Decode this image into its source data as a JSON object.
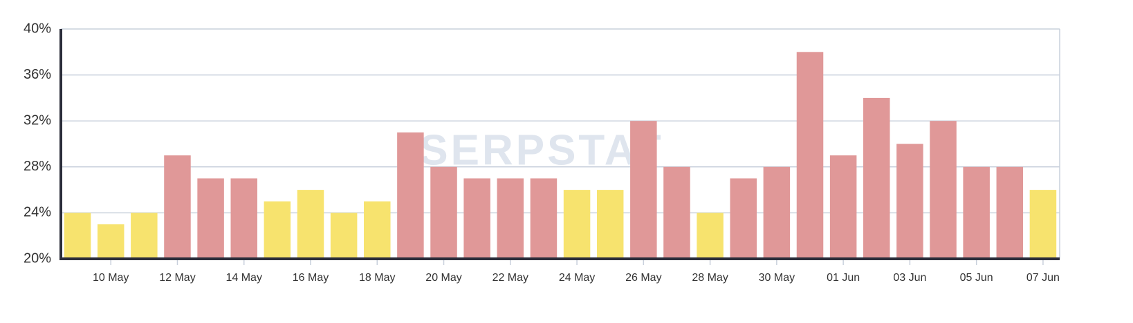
{
  "chart_data": {
    "type": "bar",
    "watermark": "SERPSTAT",
    "categories": [
      null,
      "10 May",
      null,
      "12 May",
      null,
      "14 May",
      null,
      "16 May",
      null,
      "18 May",
      null,
      "20 May",
      null,
      "22 May",
      null,
      "24 May",
      null,
      "26 May",
      null,
      "28 May",
      null,
      "30 May",
      null,
      "01 Jun",
      null,
      "03 Jun",
      null,
      "05 Jun",
      null,
      "07 Jun"
    ],
    "values": [
      24,
      23,
      24,
      29,
      27,
      27,
      25,
      26,
      24,
      25,
      31,
      28,
      27,
      27,
      27,
      26,
      26,
      32,
      28,
      24,
      27,
      28,
      38,
      29,
      34,
      30,
      32,
      28,
      28,
      26
    ],
    "colors": [
      "#f7e36e",
      "#f7e36e",
      "#f7e36e",
      "#e09898",
      "#e09898",
      "#e09898",
      "#f7e36e",
      "#f7e36e",
      "#f7e36e",
      "#f7e36e",
      "#e09898",
      "#e09898",
      "#e09898",
      "#e09898",
      "#e09898",
      "#f7e36e",
      "#f7e36e",
      "#e09898",
      "#e09898",
      "#f7e36e",
      "#e09898",
      "#e09898",
      "#e09898",
      "#e09898",
      "#e09898",
      "#e09898",
      "#e09898",
      "#e09898",
      "#e09898",
      "#f7e36e"
    ],
    "ylim": [
      20,
      40
    ],
    "yticks": [
      {
        "value": 20,
        "label": "20%"
      },
      {
        "value": 24,
        "label": "24%"
      },
      {
        "value": 28,
        "label": "28%"
      },
      {
        "value": 32,
        "label": "32%"
      },
      {
        "value": 36,
        "label": "36%"
      },
      {
        "value": 40,
        "label": "40%"
      }
    ],
    "grid": true
  }
}
